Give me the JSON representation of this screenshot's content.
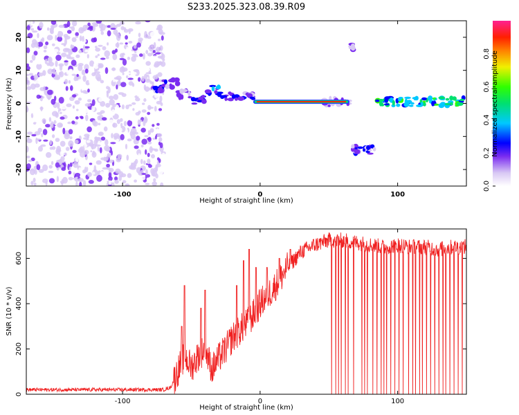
{
  "title": "S233.2025.323.08.39.R09",
  "chart_data": [
    {
      "type": "heatmap",
      "name": "spectrogram",
      "xlabel": "Height of straight line (km)",
      "ylabel": "Frequency (Hz)",
      "xlim": [
        -170,
        150
      ],
      "ylim": [
        -25,
        25
      ],
      "xticks": [
        -100,
        0,
        100
      ],
      "yticks": [
        -20,
        -10,
        0,
        10,
        20
      ],
      "colorbar": {
        "label": "Normalized spectral amplitude",
        "range": [
          0,
          1
        ],
        "ticks": [
          "0.0",
          "0.2",
          "0.4",
          "0.6",
          "0.8"
        ],
        "tick_values": [
          0.0,
          0.2,
          0.4,
          0.6,
          0.8
        ]
      },
      "noise_region_x": [
        -170,
        -70
      ],
      "strong_band": {
        "x": [
          -5,
          65
        ],
        "freq": 0.5,
        "amplitude": 0.9
      },
      "features": [
        {
          "x": [
            -78,
            -70
          ],
          "freq": 4,
          "amplitude": 0.35
        },
        {
          "x": [
            -70,
            -60
          ],
          "freq": 6,
          "amplitude": 0.3
        },
        {
          "x": [
            -60,
            -50
          ],
          "freq": 3,
          "amplitude": 0.25
        },
        {
          "x": [
            -50,
            -40
          ],
          "freq": 1,
          "amplitude": 0.35
        },
        {
          "x": [
            -40,
            -30
          ],
          "freq": 4,
          "amplitude": 0.45
        },
        {
          "x": [
            -30,
            -20
          ],
          "freq": 2,
          "amplitude": 0.35
        },
        {
          "x": [
            -20,
            -5
          ],
          "freq": 2,
          "amplitude": 0.3
        },
        {
          "x": [
            45,
            65
          ],
          "freq": 0.5,
          "amplitude": 0.2
        },
        {
          "x": [
            66,
            68
          ],
          "freq": 17,
          "amplitude": 0.25
        },
        {
          "x": [
            67,
            84
          ],
          "freq": -14,
          "amplitude": 0.3
        },
        {
          "x": [
            85,
            148
          ],
          "freq": 0.5,
          "amplitude": 0.6
        }
      ]
    },
    {
      "type": "line",
      "name": "snr",
      "xlabel": "Height of straight line (km)",
      "ylabel": "SNR (10 * v/v)",
      "xlim": [
        -170,
        150
      ],
      "ylim": [
        0,
        730
      ],
      "xticks": [
        -100,
        0,
        100
      ],
      "yticks": [
        0,
        200,
        400,
        600
      ],
      "color": "#f02020",
      "profile": {
        "x": [
          -170,
          -70,
          -65,
          -60,
          -55,
          -50,
          -45,
          -40,
          -35,
          -30,
          -25,
          -20,
          -15,
          -10,
          -5,
          0,
          10,
          20,
          30,
          40,
          50,
          60,
          70,
          80,
          90,
          100,
          110,
          120,
          130,
          140,
          150
        ],
        "values": [
          20,
          20,
          30,
          100,
          170,
          120,
          170,
          200,
          110,
          160,
          200,
          250,
          280,
          310,
          350,
          400,
          470,
          560,
          630,
          660,
          680,
          680,
          670,
          660,
          650,
          660,
          650,
          650,
          640,
          650,
          650
        ]
      },
      "dropouts_x": [
        52,
        55,
        57,
        59,
        62,
        64,
        68,
        74,
        76,
        78,
        82,
        85,
        88,
        90,
        92,
        95,
        98,
        101,
        104,
        108,
        111,
        113,
        116,
        118,
        121,
        124,
        127,
        130,
        133,
        135,
        138,
        141,
        144,
        147
      ],
      "spikes": [
        {
          "x": -55,
          "value": 480
        },
        {
          "x": -57,
          "value": 300
        },
        {
          "x": -40,
          "value": 460
        },
        {
          "x": -43,
          "value": 380
        },
        {
          "x": -17,
          "value": 480
        },
        {
          "x": -12,
          "value": 590
        },
        {
          "x": -8,
          "value": 640
        },
        {
          "x": -3,
          "value": 560
        },
        {
          "x": 5,
          "value": 560
        },
        {
          "x": 14,
          "value": 600
        },
        {
          "x": 22,
          "value": 640
        }
      ]
    }
  ]
}
